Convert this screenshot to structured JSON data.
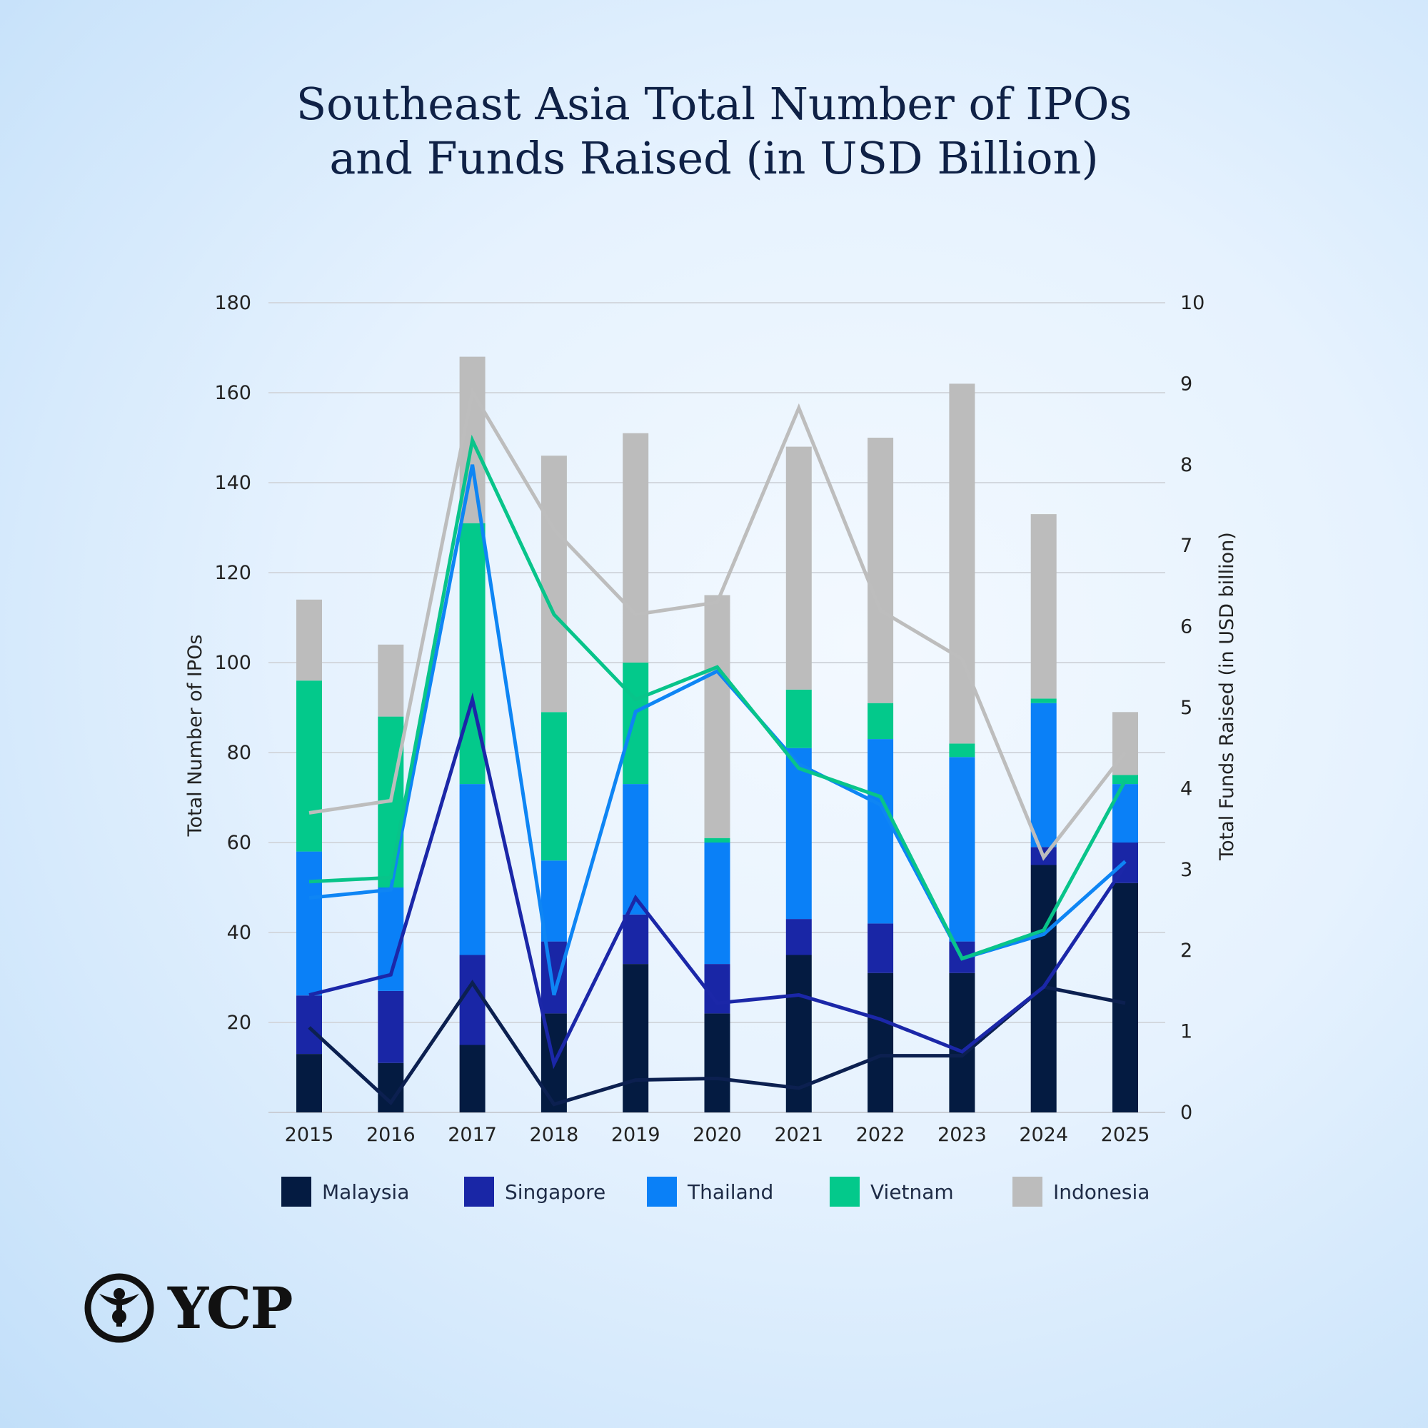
{
  "chart_data": {
    "type": "bar",
    "title": [
      "Southeast Asia Total Number of IPOs",
      "and Funds Raised (in USD Billion)"
    ],
    "categories": [
      "2015",
      "2016",
      "2017",
      "2018",
      "2019",
      "2020",
      "2021",
      "2022",
      "2023",
      "2024",
      "2025"
    ],
    "stacked": true,
    "ylabel": "Total Number of IPOs",
    "y2label": "Total Funds Raised (in USD billion)",
    "ylim": [
      0,
      180
    ],
    "y2lim": [
      0,
      10
    ],
    "yticks": [
      "20",
      "40",
      "60",
      "80",
      "100",
      "120",
      "140",
      "160",
      "180"
    ],
    "y2ticks": [
      "0",
      "1",
      "2",
      "3",
      "4",
      "5",
      "6",
      "7",
      "8",
      "9",
      "10"
    ],
    "grid": true,
    "legend": "bottom",
    "series": [
      {
        "name": "Malaysia",
        "color": "#041b41",
        "values": [
          13,
          11,
          15,
          22,
          33,
          22,
          35,
          31,
          31,
          55,
          51
        ]
      },
      {
        "name": "Singapore",
        "color": "#1926a6",
        "values": [
          13,
          16,
          20,
          16,
          11,
          11,
          8,
          11,
          7,
          4,
          9
        ]
      },
      {
        "name": "Thailand",
        "color": "#0a80f7",
        "values": [
          32,
          23,
          38,
          18,
          29,
          27,
          38,
          41,
          41,
          32,
          13
        ]
      },
      {
        "name": "Vietnam",
        "color": "#03c98b",
        "values": [
          38,
          38,
          58,
          33,
          27,
          1,
          13,
          8,
          3,
          1,
          2
        ]
      },
      {
        "name": "Indonesia",
        "color": "#bcbcbc",
        "values": [
          18,
          16,
          37,
          57,
          51,
          54,
          54,
          59,
          80,
          41,
          14
        ]
      }
    ],
    "line_series": [
      {
        "name": "Malaysia",
        "color": "#0c2050",
        "values": [
          1.05,
          0.12,
          1.6,
          0.1,
          0.4,
          0.42,
          0.3,
          0.7,
          0.7,
          1.55,
          1.35
        ]
      },
      {
        "name": "Singapore",
        "color": "#1b27a8",
        "values": [
          1.45,
          1.7,
          5.1,
          0.6,
          2.65,
          1.35,
          1.45,
          1.15,
          0.75,
          1.55,
          3.05
        ]
      },
      {
        "name": "Thailand",
        "color": "#0e85f4",
        "values": [
          2.65,
          2.75,
          8.0,
          1.45,
          4.95,
          5.45,
          4.3,
          3.8,
          1.9,
          2.2,
          3.1
        ]
      },
      {
        "name": "Vietnam",
        "color": "#08c48a",
        "values": [
          2.85,
          2.9,
          8.3,
          6.15,
          5.1,
          5.5,
          4.25,
          3.9,
          1.9,
          2.25,
          4.1
        ]
      },
      {
        "name": "Indonesia",
        "color": "#bdbdbd",
        "values": [
          3.7,
          3.85,
          8.9,
          7.2,
          6.15,
          6.3,
          8.7,
          6.2,
          5.6,
          3.15,
          4.45
        ]
      }
    ]
  },
  "logo": {
    "text": "YCP"
  }
}
